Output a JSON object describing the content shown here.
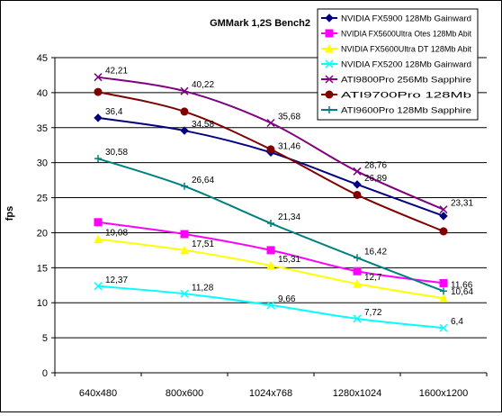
{
  "chart_data": {
    "type": "line",
    "title": "GMMark 1,2S Bench2",
    "xlabel": "",
    "ylabel": "fps",
    "categories": [
      "640x480",
      "800x600",
      "1024x768",
      "1280x1024",
      "1600x1200"
    ],
    "ylim": [
      0,
      45
    ],
    "ytick_step": 5,
    "grid": "horizontal",
    "legend_position": "top-right",
    "series": [
      {
        "name": "NVIDIA FX5900 128Mb Gainward",
        "color": "#000080",
        "marker": "diamond",
        "values": [
          36.4,
          34.58,
          31.46,
          26.89,
          22.39
        ],
        "labels": [
          "36,4",
          "34,58",
          "31,46",
          "26,89",
          null
        ]
      },
      {
        "name": "NVIDIA FX5600Ultra Otes 128Mb Abit",
        "color": "#ff00ff",
        "marker": "square",
        "values": [
          21.5,
          19.8,
          17.5,
          14.5,
          12.8
        ],
        "labels": [
          null,
          null,
          null,
          null,
          null
        ]
      },
      {
        "name": "NVIDIA FX5600Ultra DT 128Mb Abit",
        "color": "#ffff00",
        "marker": "triangle",
        "values": [
          19.08,
          17.51,
          15.31,
          12.7,
          10.64
        ],
        "labels": [
          "19,08",
          "17,51",
          "15,31",
          "12,7",
          "10,64"
        ]
      },
      {
        "name": "NVIDIA FX5200 128Mb Gainward",
        "color": "#00ffff",
        "marker": "x",
        "values": [
          12.37,
          11.28,
          9.66,
          7.72,
          6.4
        ],
        "labels": [
          "12,37",
          "11,28",
          "9,66",
          "7,72",
          "6,4"
        ]
      },
      {
        "name": "ATI9800Pro 256Mb Sapphire",
        "color": "#800080",
        "marker": "x",
        "values": [
          42.21,
          40.22,
          35.68,
          28.76,
          23.31
        ],
        "labels": [
          "42,21",
          "40,22",
          "35,68",
          "28,76",
          "23,31"
        ]
      },
      {
        "name": "ATI9700Pro 128Mb",
        "color": "#800000",
        "marker": "circle",
        "values": [
          40.1,
          37.3,
          31.9,
          25.4,
          20.2
        ],
        "labels": [
          null,
          null,
          null,
          null,
          null
        ]
      },
      {
        "name": "ATI9600Pro 128Mb Sapphire",
        "color": "#008080",
        "marker": "plus",
        "values": [
          30.58,
          26.64,
          21.34,
          16.42,
          11.66
        ],
        "labels": [
          "30,58",
          "26,64",
          "21,34",
          "16,42",
          "11,66"
        ]
      }
    ]
  }
}
